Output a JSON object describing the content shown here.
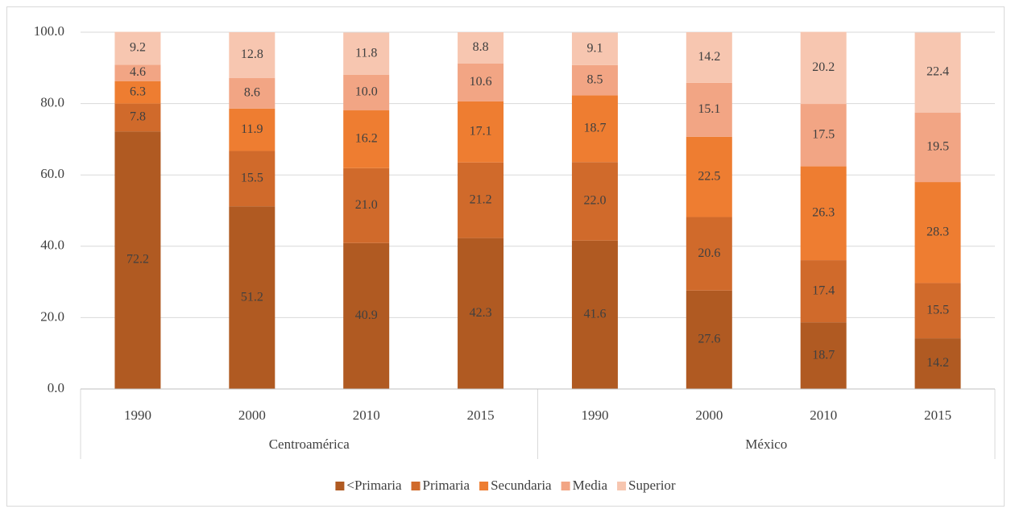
{
  "chart_data": {
    "type": "bar",
    "stacked": true,
    "groups": [
      {
        "name": "Centroamérica",
        "categories": [
          "1990",
          "2000",
          "2010",
          "2015"
        ]
      },
      {
        "name": "México",
        "categories": [
          "1990",
          "2000",
          "2010",
          "2015"
        ]
      }
    ],
    "series": [
      {
        "name": "<Primaria",
        "color": "#b05a22",
        "values": [
          72.2,
          51.2,
          40.9,
          42.3,
          41.6,
          27.6,
          18.7,
          14.2
        ],
        "value_labels": [
          "72.2",
          "51.2",
          "40.9",
          "42.3",
          "41.6",
          "27.6",
          "18.7",
          "14.2"
        ]
      },
      {
        "name": "Primaria",
        "color": "#d06a2b",
        "values": [
          7.8,
          15.5,
          21.0,
          21.2,
          22.0,
          20.6,
          17.4,
          15.5
        ],
        "value_labels": [
          "7.8",
          "15.5",
          "21.0",
          "21.2",
          "22.0",
          "20.6",
          "17.4",
          "15.5"
        ]
      },
      {
        "name": "Secundaria",
        "color": "#ee7d31",
        "values": [
          6.3,
          11.9,
          16.2,
          17.1,
          18.7,
          22.5,
          26.3,
          28.3
        ],
        "value_labels": [
          "6.3",
          "11.9",
          "16.2",
          "17.1",
          "18.7",
          "22.5",
          "26.3",
          "28.3"
        ]
      },
      {
        "name": "Media",
        "color": "#f2a584",
        "values": [
          4.6,
          8.6,
          10.0,
          10.6,
          8.5,
          15.1,
          17.5,
          19.5
        ],
        "value_labels": [
          "4.6",
          "8.6",
          "10.0",
          "10.6",
          "8.5",
          "15.1",
          "17.5",
          "19.5"
        ]
      },
      {
        "name": "Superior",
        "color": "#f7c6b0",
        "values": [
          9.2,
          12.8,
          11.8,
          8.8,
          9.1,
          14.2,
          20.2,
          22.4
        ],
        "value_labels": [
          "9.2",
          "12.8",
          "11.8",
          "8.8",
          "9.1",
          "14.2",
          "20.2",
          "22.4"
        ]
      }
    ],
    "ylim": [
      0,
      100
    ],
    "yticks": [
      {
        "value": 0,
        "label": "0.0"
      },
      {
        "value": 20,
        "label": "20.0"
      },
      {
        "value": 40,
        "label": "40.0"
      },
      {
        "value": 60,
        "label": "60.0"
      },
      {
        "value": 80,
        "label": "80.0"
      },
      {
        "value": 100,
        "label": "100.0"
      }
    ],
    "grid": true,
    "legend": "bottom"
  }
}
